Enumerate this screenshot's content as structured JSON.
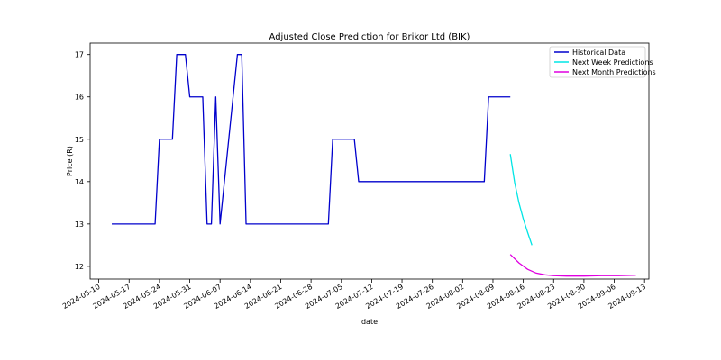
{
  "chart_data": {
    "type": "line",
    "title": "Adjusted Close Prediction for Brikor Ltd (BIK)",
    "xlabel": "date",
    "ylabel": "Price (R)",
    "x_type": "date",
    "xlim": [
      "2024-05-08",
      "2024-09-14"
    ],
    "ylim": [
      11.7,
      17.27
    ],
    "x_ticks": [
      "2024-05-10",
      "2024-05-17",
      "2024-05-24",
      "2024-05-31",
      "2024-06-07",
      "2024-06-14",
      "2024-06-21",
      "2024-06-28",
      "2024-07-05",
      "2024-07-12",
      "2024-07-19",
      "2024-07-26",
      "2024-08-02",
      "2024-08-09",
      "2024-08-16",
      "2024-08-23",
      "2024-08-30",
      "2024-09-06",
      "2024-09-13"
    ],
    "y_ticks": [
      12,
      13,
      14,
      15,
      16,
      17
    ],
    "grid": false,
    "legend_position": "top-right",
    "series": [
      {
        "name": "Historical Data",
        "color": "#0000cc",
        "points": [
          [
            "2024-05-13",
            13
          ],
          [
            "2024-05-23",
            13
          ],
          [
            "2024-05-24",
            15
          ],
          [
            "2024-05-27",
            15
          ],
          [
            "2024-05-28",
            17
          ],
          [
            "2024-05-30",
            17
          ],
          [
            "2024-05-31",
            16
          ],
          [
            "2024-06-03",
            16
          ],
          [
            "2024-06-04",
            13
          ],
          [
            "2024-06-05",
            13
          ],
          [
            "2024-06-06",
            16
          ],
          [
            "2024-06-07",
            13
          ],
          [
            "2024-06-11",
            17
          ],
          [
            "2024-06-12",
            17
          ],
          [
            "2024-06-13",
            13
          ],
          [
            "2024-07-02",
            13
          ],
          [
            "2024-07-03",
            15
          ],
          [
            "2024-07-08",
            15
          ],
          [
            "2024-07-09",
            14
          ],
          [
            "2024-08-07",
            14
          ],
          [
            "2024-08-08",
            16
          ],
          [
            "2024-08-13",
            16
          ]
        ]
      },
      {
        "name": "Next Week Predictions",
        "color": "#00e5e5",
        "points": [
          [
            "2024-08-13",
            14.65
          ],
          [
            "2024-08-14",
            13.98
          ],
          [
            "2024-08-15",
            13.5
          ],
          [
            "2024-08-16",
            13.12
          ],
          [
            "2024-08-17",
            12.8
          ],
          [
            "2024-08-18",
            12.5
          ]
        ]
      },
      {
        "name": "Next Month Predictions",
        "color": "#e000e0",
        "points": [
          [
            "2024-08-13",
            12.28
          ],
          [
            "2024-08-15",
            12.08
          ],
          [
            "2024-08-17",
            11.93
          ],
          [
            "2024-08-19",
            11.84
          ],
          [
            "2024-08-21",
            11.8
          ],
          [
            "2024-08-23",
            11.78
          ],
          [
            "2024-08-26",
            11.77
          ],
          [
            "2024-08-30",
            11.77
          ],
          [
            "2024-09-03",
            11.78
          ],
          [
            "2024-09-07",
            11.78
          ],
          [
            "2024-09-11",
            11.79
          ]
        ]
      }
    ]
  }
}
